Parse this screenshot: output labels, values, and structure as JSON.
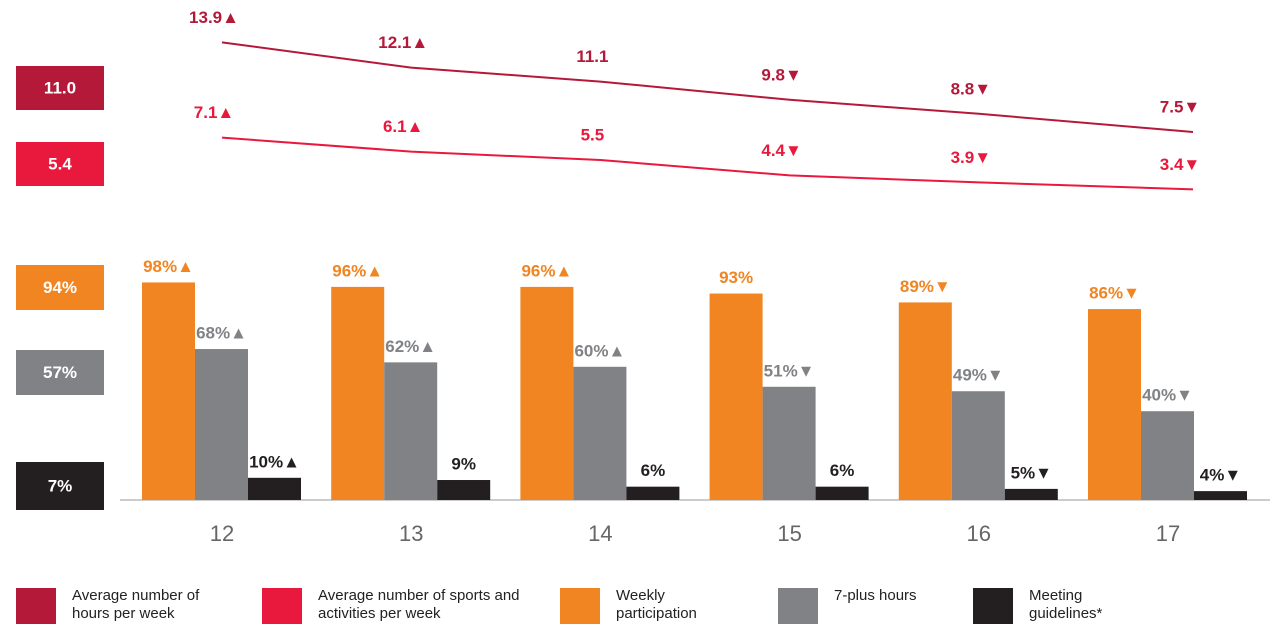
{
  "chart_data": {
    "type": "bar",
    "categories": [
      "12",
      "13",
      "14",
      "15",
      "16",
      "17"
    ],
    "lines": [
      {
        "name": "Average number of hours per week",
        "color": "#b5193a",
        "values": [
          13.9,
          12.1,
          11.1,
          9.8,
          8.8,
          7.5
        ],
        "value_labels": [
          "13.9▲",
          "12.1▲",
          "11.1",
          "9.8▼",
          "8.8▼",
          "7.5▼"
        ]
      },
      {
        "name": "Average number of sports and activities per week",
        "color": "#e8193c",
        "values": [
          7.1,
          6.1,
          5.5,
          4.4,
          3.9,
          3.4
        ],
        "value_labels": [
          "7.1▲",
          "6.1▲",
          "5.5",
          "4.4▼",
          "3.9▼",
          "3.4▼"
        ]
      }
    ],
    "series": [
      {
        "name": "Weekly participation",
        "color": "#f08522",
        "values": [
          98,
          96,
          96,
          93,
          89,
          86
        ],
        "value_labels": [
          "98%▲",
          "96%▲",
          "96%▲",
          "93%",
          "89%▼",
          "86%▼"
        ]
      },
      {
        "name": "7-plus hours",
        "color": "#808285",
        "values": [
          68,
          62,
          60,
          51,
          49,
          40
        ],
        "value_labels": [
          "68%▲",
          "62%▲",
          "60%▲",
          "51%▼",
          "49%▼",
          "40%▼"
        ]
      },
      {
        "name": "Meeting guidelines*",
        "color": "#231f20",
        "values": [
          10,
          9,
          6,
          6,
          5,
          4
        ],
        "value_labels": [
          "10%▲",
          "9%",
          "6%",
          "6%",
          "5%▼",
          "4%▼"
        ]
      }
    ],
    "summary": {
      "values": [
        11.0,
        5.4,
        94,
        57,
        7
      ],
      "value_labels": [
        "11.0",
        "5.4",
        "94%",
        "57%",
        "7%"
      ]
    }
  }
}
